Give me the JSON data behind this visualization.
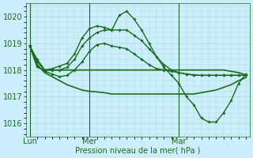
{
  "bg_color": "#cceeff",
  "grid_color": "#aaddcc",
  "line_color": "#1a6b1a",
  "marker_color": "#1a6b1a",
  "xlabel": "Pression niveau de la mer( hPa )",
  "ylim": [
    1015.5,
    1020.5
  ],
  "yticks": [
    1016,
    1017,
    1018,
    1019,
    1020
  ],
  "xtick_labels": [
    "Lun",
    "Mer",
    "Mar"
  ],
  "xtick_pos": [
    0,
    8,
    20
  ],
  "vline_pos": [
    0,
    8,
    20
  ],
  "line_widths": [
    1.0,
    1.0,
    1.0,
    1.2,
    1.2
  ],
  "series": [
    [
      1018.9,
      1018.4,
      1018.0,
      1018.05,
      1018.15,
      1018.25,
      1018.6,
      1019.2,
      1019.55,
      1019.65,
      1019.6,
      1019.5,
      1020.05,
      1020.2,
      1019.9,
      1019.5,
      1019.0,
      1018.5,
      1018.1,
      1017.8,
      1017.5,
      1017.0,
      1016.7,
      1016.2,
      1016.05,
      1016.05,
      1016.4,
      1016.85,
      1017.5,
      1017.85
    ],
    [
      1018.9,
      1018.3,
      1018.0,
      1018.0,
      1018.0,
      1018.1,
      1018.4,
      1018.9,
      1019.2,
      1019.4,
      1019.5,
      1019.5,
      1019.5,
      1019.5,
      1019.3,
      1019.1,
      1018.8,
      1018.5,
      1018.2,
      1018.0,
      1017.9,
      1017.85,
      1017.8,
      1017.8,
      1017.8,
      1017.8,
      1017.8,
      1017.8,
      1017.8,
      1017.8
    ],
    [
      1018.9,
      1018.15,
      1017.95,
      1017.85,
      1017.75,
      1017.8,
      1018.0,
      1018.3,
      1018.7,
      1018.95,
      1019.0,
      1018.9,
      1018.85,
      1018.8,
      1018.6,
      1018.4,
      1018.2,
      1018.05,
      1018.0,
      1017.95,
      1017.9,
      1017.85,
      1017.82,
      1017.8,
      1017.8,
      1017.8,
      1017.8,
      1017.8,
      1017.8,
      1017.8
    ],
    [
      1018.9,
      1018.1,
      1018.0,
      1018.0,
      1018.0,
      1018.0,
      1018.0,
      1018.0,
      1018.0,
      1018.0,
      1018.0,
      1018.0,
      1018.0,
      1018.0,
      1018.0,
      1018.0,
      1018.0,
      1018.0,
      1018.0,
      1018.0,
      1018.0,
      1018.0,
      1018.0,
      1018.0,
      1018.0,
      1018.0,
      1018.0,
      1017.95,
      1017.9,
      1017.82
    ],
    [
      1018.9,
      1018.2,
      1017.9,
      1017.75,
      1017.6,
      1017.45,
      1017.35,
      1017.25,
      1017.2,
      1017.18,
      1017.15,
      1017.1,
      1017.1,
      1017.1,
      1017.1,
      1017.1,
      1017.1,
      1017.1,
      1017.1,
      1017.1,
      1017.1,
      1017.1,
      1017.1,
      1017.15,
      1017.2,
      1017.25,
      1017.35,
      1017.45,
      1017.6,
      1017.72
    ]
  ],
  "marker_series": [
    0,
    1,
    2
  ],
  "n_points": 30
}
